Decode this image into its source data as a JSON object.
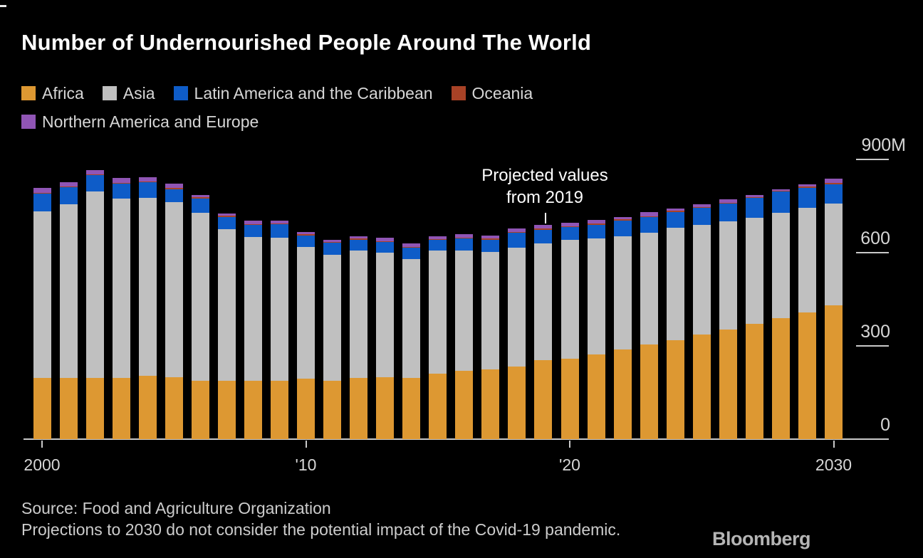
{
  "title": "Number of Undernourished People Around The World",
  "annotation": {
    "line1": "Projected values",
    "line2": "from 2019"
  },
  "y_axis": {
    "tick_labels": [
      "900M",
      "600",
      "300",
      "0"
    ],
    "ticks": [
      900,
      600,
      300,
      0
    ]
  },
  "x_axis": {
    "tick_labels": [
      "2000",
      "'10",
      "'20",
      "2030"
    ],
    "tick_years": [
      2000,
      2010,
      2020,
      2030
    ]
  },
  "footer": {
    "source_line1": "Source: Food and Agriculture Organization",
    "source_line2": "Projections to 2030 do not consider the potential impact of the Covid-19 pandemic.",
    "brand": "Bloomberg"
  },
  "colors": {
    "background": "#000000",
    "title_text": "#ffffff",
    "axis_text": "#d6d6d6",
    "axis_line": "#c9c9c9"
  },
  "chart_data": {
    "type": "bar",
    "stacked": true,
    "unit": "millions of people",
    "ylim": [
      0,
      900
    ],
    "y_ticks": [
      0,
      300,
      600,
      900
    ],
    "y_tick_suffix_top": "M",
    "grid": false,
    "legend_position": "top",
    "projected_from": 2019,
    "x": [
      2000,
      2001,
      2002,
      2003,
      2004,
      2005,
      2006,
      2007,
      2008,
      2009,
      2010,
      2011,
      2012,
      2013,
      2014,
      2015,
      2016,
      2017,
      2018,
      2019,
      2020,
      2021,
      2022,
      2023,
      2024,
      2025,
      2026,
      2027,
      2028,
      2029,
      2030
    ],
    "series": [
      {
        "name": "Africa",
        "color": "#dd9832",
        "values": [
          198,
          197,
          198,
          197,
          204,
          199,
          189,
          189,
          187,
          189,
          195,
          189,
          198,
          200,
          198,
          212,
          221,
          225,
          235,
          254,
          258,
          273,
          289,
          304,
          319,
          336,
          354,
          371,
          390,
          409,
          430
        ]
      },
      {
        "name": "Asia",
        "color": "#c0c0c0",
        "values": [
          535,
          560,
          600,
          577,
          573,
          565,
          540,
          487,
          465,
          460,
          425,
          405,
          409,
          401,
          383,
          395,
          386,
          378,
          383,
          377,
          383,
          374,
          364,
          362,
          361,
          354,
          347,
          343,
          340,
          336,
          330
        ]
      },
      {
        "name": "Latin America and the Caribbean",
        "color": "#0e5cc8",
        "values": [
          57,
          54,
          52,
          49,
          50,
          42,
          47,
          40,
          38,
          44,
          37,
          38,
          36,
          34,
          36,
          34,
          40,
          40,
          46,
          44,
          42,
          44,
          52,
          49,
          52,
          55,
          58,
          63,
          67,
          65,
          62
        ]
      },
      {
        "name": "Oceania",
        "color": "#a84226",
        "values": [
          3,
          3,
          3,
          3,
          3,
          3,
          3,
          3,
          3,
          3,
          3,
          3,
          3,
          3,
          3,
          3,
          3,
          3,
          3,
          3,
          3,
          3,
          3,
          3,
          3,
          3,
          3,
          3,
          3,
          3,
          3
        ]
      },
      {
        "name": "Northern America and Europe",
        "color": "#9055b5",
        "values": [
          17,
          15,
          14,
          15,
          14,
          15,
          7,
          9,
          10,
          9,
          7,
          8,
          8,
          11,
          10,
          9,
          11,
          11,
          12,
          13,
          12,
          13,
          8,
          13,
          8,
          9,
          11,
          7,
          6,
          7,
          14
        ]
      }
    ]
  }
}
